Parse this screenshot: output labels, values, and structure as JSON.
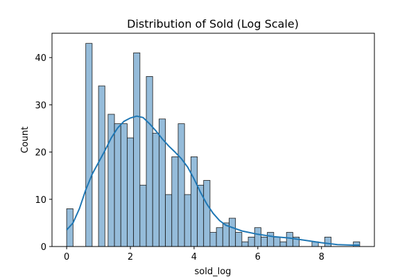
{
  "chart_data": {
    "type": "bar",
    "subtype": "histogram_with_kde",
    "title": "Distribution of Sold (Log Scale)",
    "xlabel": "sold_log",
    "ylabel": "Count",
    "xlim": [
      -0.46,
      9.66
    ],
    "ylim": [
      0,
      45.15
    ],
    "xticks": [
      0,
      2,
      4,
      6,
      8
    ],
    "yticks": [
      0,
      10,
      20,
      30,
      40
    ],
    "grid": false,
    "legend": "none",
    "bin_width": 0.2,
    "colors": {
      "bar_fill": "#8fb8d8",
      "bar_edge": "#1a1a1a",
      "kde_line": "#1f77b4"
    },
    "bins": [
      {
        "x0": 0.0,
        "x1": 0.2,
        "count": 8
      },
      {
        "x0": 0.6,
        "x1": 0.8,
        "count": 43
      },
      {
        "x0": 1.0,
        "x1": 1.2,
        "count": 34
      },
      {
        "x0": 1.3,
        "x1": 1.5,
        "count": 28
      },
      {
        "x0": 1.5,
        "x1": 1.7,
        "count": 26
      },
      {
        "x0": 1.7,
        "x1": 1.9,
        "count": 26
      },
      {
        "x0": 1.9,
        "x1": 2.1,
        "count": 23
      },
      {
        "x0": 2.1,
        "x1": 2.3,
        "count": 41
      },
      {
        "x0": 2.3,
        "x1": 2.5,
        "count": 13
      },
      {
        "x0": 2.5,
        "x1": 2.7,
        "count": 36
      },
      {
        "x0": 2.7,
        "x1": 2.9,
        "count": 24
      },
      {
        "x0": 2.9,
        "x1": 3.1,
        "count": 27
      },
      {
        "x0": 3.1,
        "x1": 3.3,
        "count": 11
      },
      {
        "x0": 3.3,
        "x1": 3.5,
        "count": 19
      },
      {
        "x0": 3.5,
        "x1": 3.7,
        "count": 26
      },
      {
        "x0": 3.7,
        "x1": 3.9,
        "count": 11
      },
      {
        "x0": 3.9,
        "x1": 4.1,
        "count": 19
      },
      {
        "x0": 4.1,
        "x1": 4.3,
        "count": 13
      },
      {
        "x0": 4.3,
        "x1": 4.5,
        "count": 14
      },
      {
        "x0": 4.5,
        "x1": 4.7,
        "count": 3
      },
      {
        "x0": 4.7,
        "x1": 4.9,
        "count": 4
      },
      {
        "x0": 4.9,
        "x1": 5.1,
        "count": 5
      },
      {
        "x0": 5.1,
        "x1": 5.3,
        "count": 6
      },
      {
        "x0": 5.3,
        "x1": 5.5,
        "count": 3
      },
      {
        "x0": 5.5,
        "x1": 5.7,
        "count": 1
      },
      {
        "x0": 5.7,
        "x1": 5.9,
        "count": 2
      },
      {
        "x0": 5.9,
        "x1": 6.1,
        "count": 4
      },
      {
        "x0": 6.1,
        "x1": 6.3,
        "count": 2
      },
      {
        "x0": 6.3,
        "x1": 6.5,
        "count": 3
      },
      {
        "x0": 6.5,
        "x1": 6.7,
        "count": 2
      },
      {
        "x0": 6.7,
        "x1": 6.9,
        "count": 1
      },
      {
        "x0": 6.9,
        "x1": 7.1,
        "count": 3
      },
      {
        "x0": 7.1,
        "x1": 7.3,
        "count": 2
      },
      {
        "x0": 7.7,
        "x1": 7.9,
        "count": 1
      },
      {
        "x0": 8.1,
        "x1": 8.3,
        "count": 2
      },
      {
        "x0": 9.0,
        "x1": 9.2,
        "count": 1
      }
    ],
    "kde": {
      "x": [
        0.0,
        0.2,
        0.4,
        0.6,
        0.8,
        1.0,
        1.2,
        1.4,
        1.6,
        1.8,
        2.0,
        2.2,
        2.4,
        2.6,
        2.8,
        3.0,
        3.2,
        3.4,
        3.6,
        3.8,
        4.0,
        4.2,
        4.4,
        4.6,
        4.8,
        5.0,
        5.5,
        6.0,
        6.5,
        7.0,
        7.5,
        8.0,
        8.5,
        9.0,
        9.2
      ],
      "y": [
        3.5,
        5.0,
        8.0,
        12.0,
        15.3,
        17.8,
        20.3,
        23.0,
        25.1,
        26.5,
        27.2,
        27.6,
        27.3,
        26.0,
        24.5,
        22.8,
        21.3,
        20.0,
        18.6,
        16.8,
        14.3,
        11.5,
        9.0,
        7.0,
        5.5,
        4.5,
        3.3,
        2.6,
        2.1,
        1.8,
        1.3,
        0.8,
        0.4,
        0.3,
        0.3
      ]
    }
  }
}
